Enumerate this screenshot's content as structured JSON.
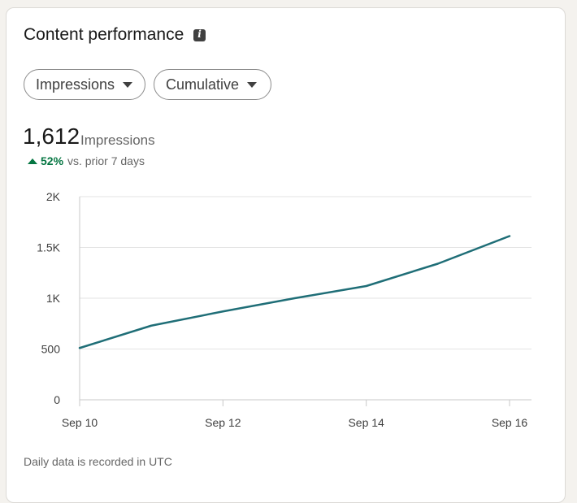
{
  "card": {
    "title": "Content performance",
    "info_icon": "info-icon"
  },
  "filters": {
    "metric_label": "Impressions",
    "mode_label": "Cumulative"
  },
  "summary": {
    "value": "1,612",
    "unit": "Impressions",
    "change_percent": "52%",
    "change_text": "vs. prior 7 days",
    "change_color": "#057642"
  },
  "footer": {
    "note": "Daily data is recorded in UTC"
  },
  "colors": {
    "line": "#1f6e77",
    "grid": "#e3e3e3",
    "axis": "#c8c8c8"
  },
  "chart_data": {
    "type": "line",
    "title": "",
    "xlabel": "",
    "ylabel": "",
    "x": [
      "Sep 10",
      "Sep 11",
      "Sep 12",
      "Sep 13",
      "Sep 14",
      "Sep 15",
      "Sep 16"
    ],
    "x_tick_labels": [
      "Sep 10",
      "Sep 12",
      "Sep 14",
      "Sep 16"
    ],
    "y_tick_labels": [
      "0",
      "500",
      "1K",
      "1.5K",
      "2K"
    ],
    "ylim": [
      0,
      2000
    ],
    "grid": true,
    "series": [
      {
        "values": [
          510,
          730,
          870,
          1000,
          1120,
          1340,
          1612
        ]
      }
    ]
  }
}
